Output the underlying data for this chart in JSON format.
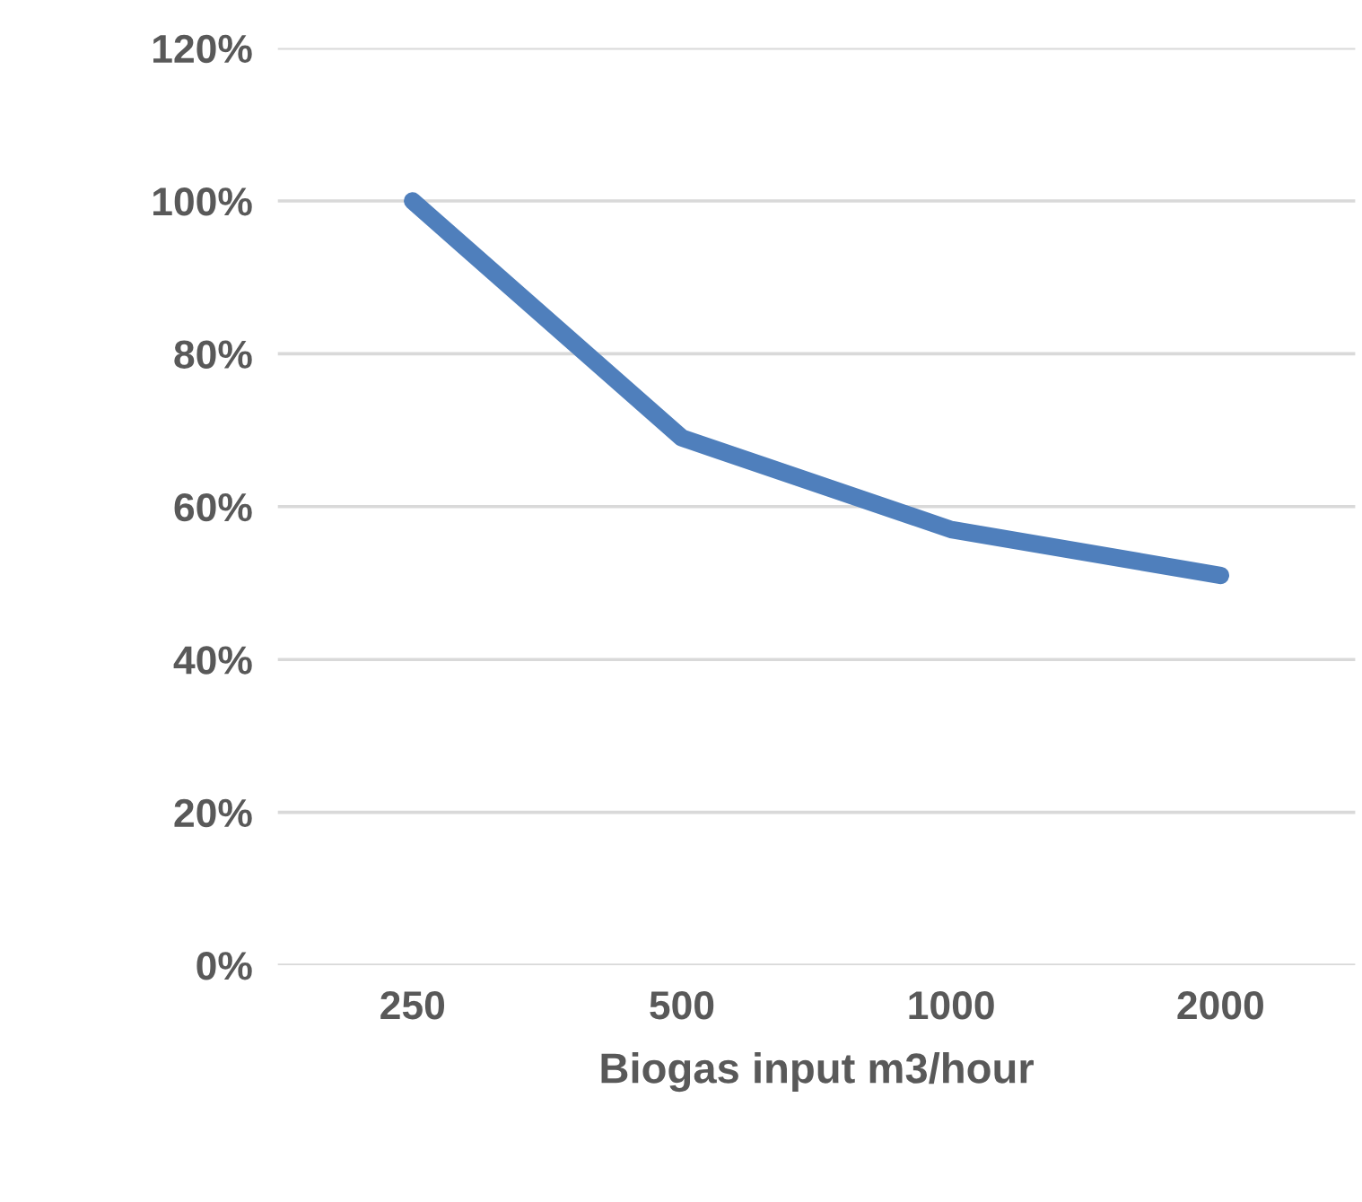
{
  "chart_data": {
    "type": "line",
    "xlabel": "Biogas input m3/hour",
    "categories": [
      "250",
      "500",
      "1000",
      "2000"
    ],
    "series": [
      {
        "color": "#4f7fbc",
        "values": [
          100,
          69,
          57,
          51
        ]
      }
    ],
    "ylim": [
      0,
      120
    ],
    "yticks": [
      {
        "value": 0,
        "label": "0%"
      },
      {
        "value": 20,
        "label": "20%"
      },
      {
        "value": 40,
        "label": "40%"
      },
      {
        "value": 60,
        "label": "60%"
      },
      {
        "value": 80,
        "label": "80%"
      },
      {
        "value": 100,
        "label": "100%"
      },
      {
        "value": 120,
        "label": "120%"
      }
    ],
    "grid": "y",
    "marker": "none",
    "line_style": "solid"
  }
}
